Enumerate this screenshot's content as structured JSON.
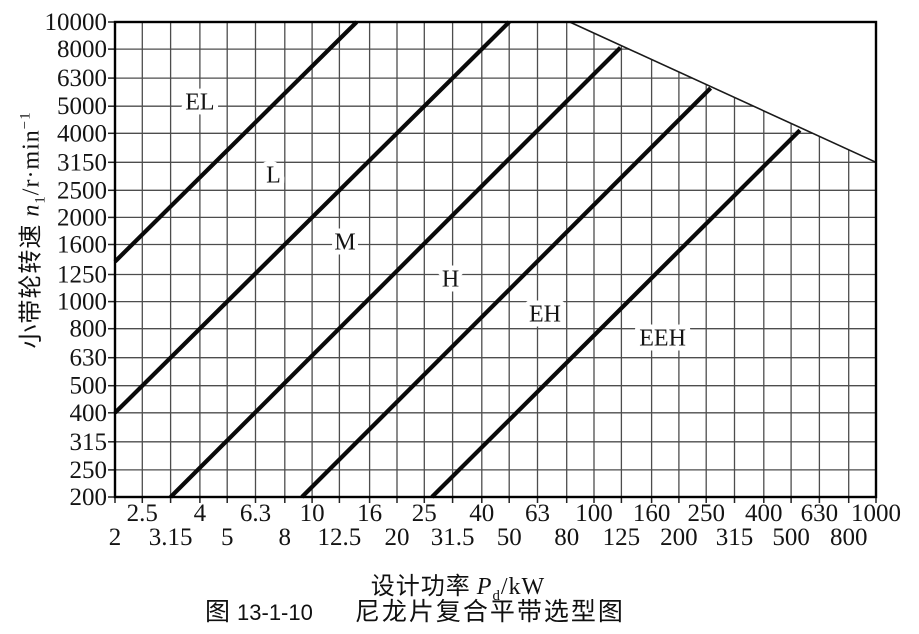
{
  "figure": {
    "caption_fig_label": "图",
    "caption_number": "13-1-10",
    "caption_title": "尼龙片复合平带选型图"
  },
  "axes": {
    "x_title": {
      "prefix": "设计功率",
      "var": "P",
      "sub": "d",
      "suffix": "/kW"
    },
    "y_title": {
      "prefix": "小带轮转速 ",
      "var": "n",
      "sub": "1",
      "unit": "/r·min",
      "sup": "−1"
    }
  },
  "chart_data": {
    "type": "line",
    "title": "尼龙片复合平带选型图",
    "xlabel": "设计功率 Pd/kW",
    "ylabel": "小带轮转速 n1/r·min−1",
    "xscale": "log",
    "yscale": "log",
    "xlim": [
      2,
      1000
    ],
    "ylim": [
      200,
      10000
    ],
    "grid": true,
    "x_ticks": [
      {
        "value": 2,
        "label": "2",
        "row": "lower"
      },
      {
        "value": 2.5,
        "label": "2.5",
        "row": "upper"
      },
      {
        "value": 3.15,
        "label": "3.15",
        "row": "lower"
      },
      {
        "value": 4,
        "label": "4",
        "row": "upper"
      },
      {
        "value": 5,
        "label": "5",
        "row": "lower"
      },
      {
        "value": 6.3,
        "label": "6.3",
        "row": "upper"
      },
      {
        "value": 8,
        "label": "8",
        "row": "lower"
      },
      {
        "value": 10,
        "label": "10",
        "row": "upper"
      },
      {
        "value": 12.5,
        "label": "12.5",
        "row": "lower"
      },
      {
        "value": 16,
        "label": "16",
        "row": "upper"
      },
      {
        "value": 20,
        "label": "20",
        "row": "lower"
      },
      {
        "value": 25,
        "label": "25",
        "row": "upper"
      },
      {
        "value": 31.5,
        "label": "31.5",
        "row": "lower"
      },
      {
        "value": 40,
        "label": "40",
        "row": "upper"
      },
      {
        "value": 50,
        "label": "50",
        "row": "lower"
      },
      {
        "value": 63,
        "label": "63",
        "row": "upper"
      },
      {
        "value": 80,
        "label": "80",
        "row": "lower"
      },
      {
        "value": 100,
        "label": "100",
        "row": "upper"
      },
      {
        "value": 125,
        "label": "125",
        "row": "lower"
      },
      {
        "value": 160,
        "label": "160",
        "row": "upper"
      },
      {
        "value": 200,
        "label": "200",
        "row": "lower"
      },
      {
        "value": 250,
        "label": "250",
        "row": "upper"
      },
      {
        "value": 315,
        "label": "315",
        "row": "lower"
      },
      {
        "value": 400,
        "label": "400",
        "row": "upper"
      },
      {
        "value": 500,
        "label": "500",
        "row": "lower"
      },
      {
        "value": 630,
        "label": "630",
        "row": "upper"
      },
      {
        "value": 800,
        "label": "800",
        "row": "lower"
      },
      {
        "value": 1000,
        "label": "1000",
        "row": "upper"
      }
    ],
    "y_ticks": [
      {
        "value": 10000,
        "label": "10000"
      },
      {
        "value": 8000,
        "label": "8000"
      },
      {
        "value": 6300,
        "label": "6300"
      },
      {
        "value": 5000,
        "label": "5000"
      },
      {
        "value": 4000,
        "label": "4000"
      },
      {
        "value": 3150,
        "label": "3150"
      },
      {
        "value": 2500,
        "label": "2500"
      },
      {
        "value": 2000,
        "label": "2000"
      },
      {
        "value": 1600,
        "label": "1600"
      },
      {
        "value": 1250,
        "label": "1250"
      },
      {
        "value": 1000,
        "label": "1000"
      },
      {
        "value": 800,
        "label": "800"
      },
      {
        "value": 630,
        "label": "630"
      },
      {
        "value": 500,
        "label": "500"
      },
      {
        "value": 400,
        "label": "400"
      },
      {
        "value": 315,
        "label": "315"
      },
      {
        "value": 250,
        "label": "250"
      },
      {
        "value": 200,
        "label": "200"
      }
    ],
    "regions": [
      {
        "label": "EL",
        "x": 4,
        "y": 5200
      },
      {
        "label": "L",
        "x": 7.3,
        "y": 2850
      },
      {
        "label": "M",
        "x": 13.1,
        "y": 1640
      },
      {
        "label": "H",
        "x": 31,
        "y": 1210
      },
      {
        "label": "EH",
        "x": 67,
        "y": 905
      },
      {
        "label": "EEH",
        "x": 175,
        "y": 745
      }
    ],
    "boundary_lines": [
      {
        "name": "EL-L",
        "points": [
          [
            2,
            1390
          ],
          [
            14.4,
            10000
          ]
        ]
      },
      {
        "name": "L-M",
        "points": [
          [
            2,
            400
          ],
          [
            50,
            10000
          ]
        ]
      },
      {
        "name": "M-H",
        "points": [
          [
            3.15,
            200
          ],
          [
            124,
            8100
          ]
        ]
      },
      {
        "name": "H-EH",
        "points": [
          [
            9.2,
            200
          ],
          [
            259,
            5800
          ]
        ]
      },
      {
        "name": "EH-EEH",
        "points": [
          [
            26.6,
            200
          ],
          [
            537,
            4100
          ]
        ]
      }
    ],
    "speed_limit_line": {
      "points": [
        [
          82,
          10000
        ],
        [
          1000,
          3150
        ]
      ]
    }
  }
}
